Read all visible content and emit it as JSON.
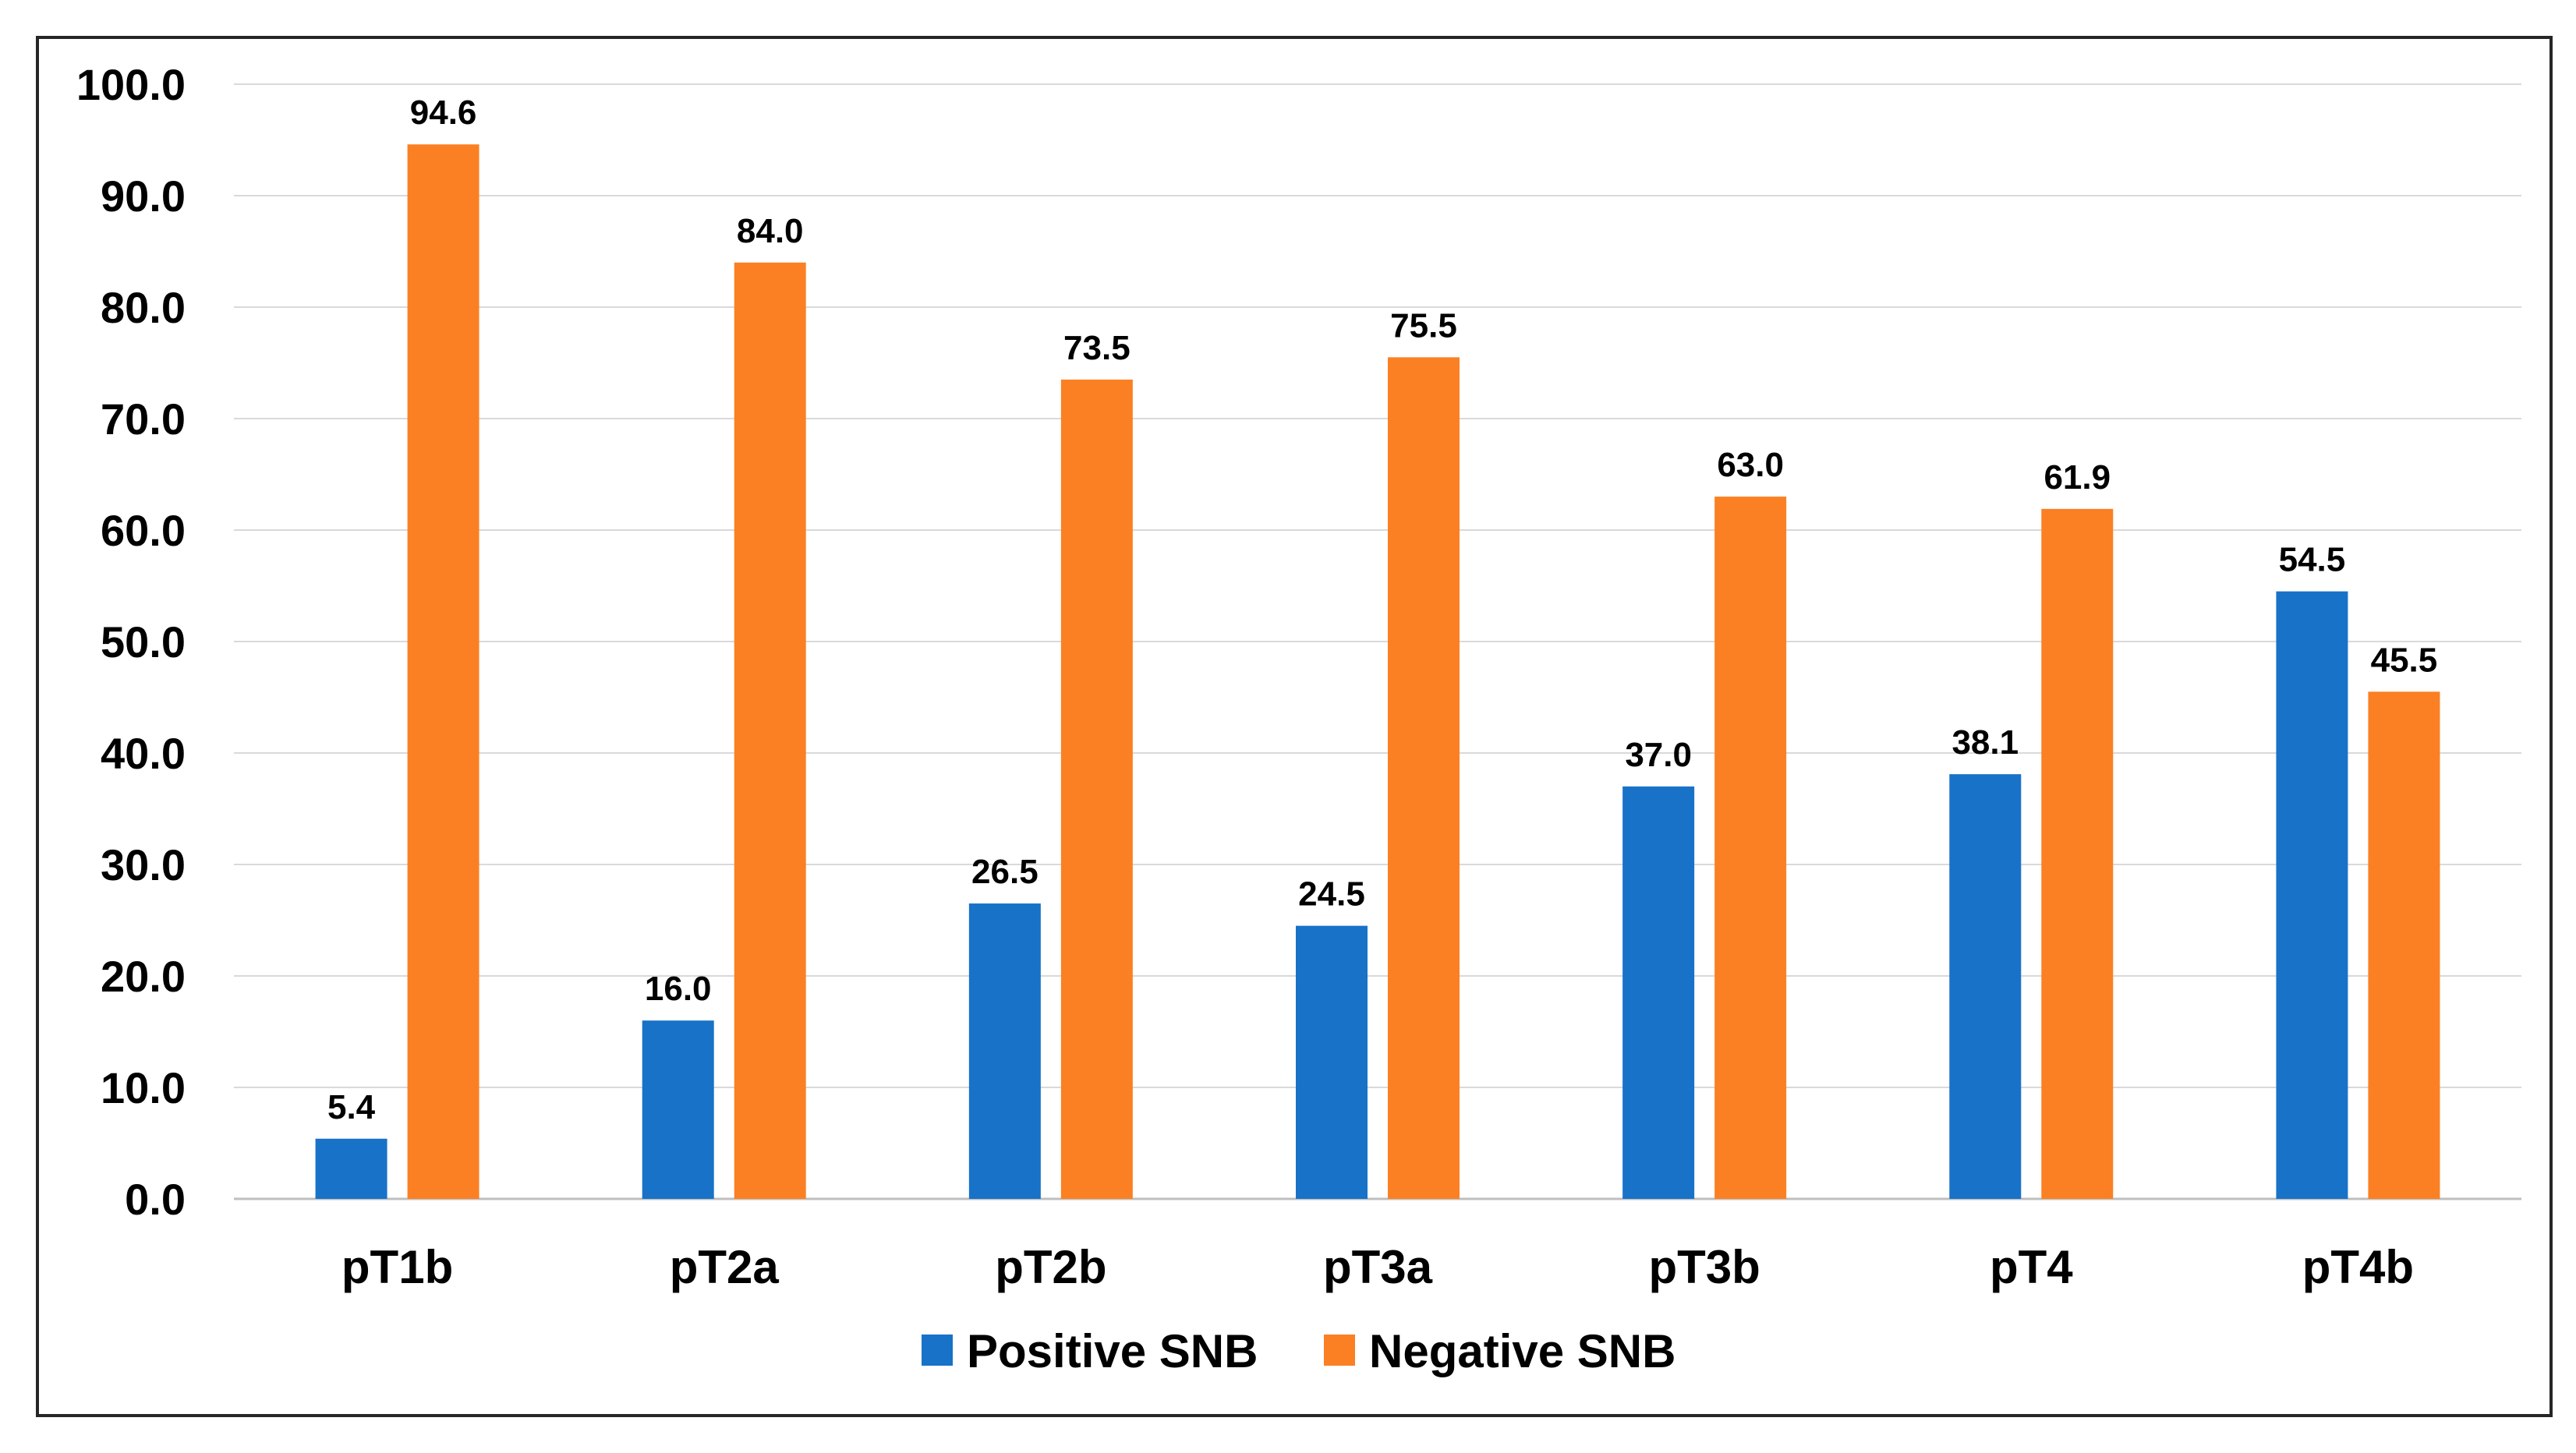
{
  "chart_data": {
    "type": "bar",
    "title": "",
    "xlabel": "",
    "ylabel": "",
    "ylim": [
      0,
      100
    ],
    "ytick_step": 10,
    "ytick_labels": [
      "0.0",
      "10.0",
      "20.0",
      "30.0",
      "40.0",
      "50.0",
      "60.0",
      "70.0",
      "80.0",
      "90.0",
      "100.0"
    ],
    "grid": true,
    "legend_position": "bottom-center",
    "categories": [
      "pT1b",
      "pT2a",
      "pT2b",
      "pT3a",
      "pT3b",
      "pT4",
      "pT4b"
    ],
    "series": [
      {
        "name": "Positive SNB",
        "color": "#1872C8",
        "values": [
          5.4,
          16.0,
          26.5,
          24.5,
          37.0,
          38.1,
          54.5
        ],
        "labels": [
          "5.4",
          "16.0",
          "26.5",
          "24.5",
          "37.0",
          "38.1",
          "54.5"
        ]
      },
      {
        "name": "Negative SNB",
        "color": "#FB8023",
        "values": [
          94.6,
          84.0,
          73.5,
          75.5,
          63.0,
          61.9,
          45.5
        ],
        "labels": [
          "94.6",
          "84.0",
          "73.5",
          "75.5",
          "63.0",
          "61.9",
          "45.5"
        ]
      }
    ]
  }
}
